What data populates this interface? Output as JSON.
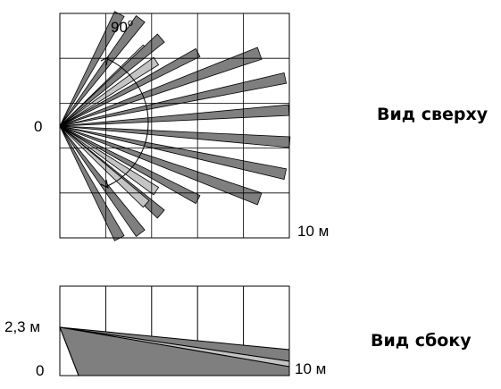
{
  "top_view": {
    "angle_label": "90",
    "angle_degree_mark": "o",
    "origin_label": "0",
    "range_label": "10 м",
    "caption": "Вид сверху"
  },
  "side_view": {
    "height_label": "2,3 м",
    "origin_label": "0",
    "range_label": "10 м",
    "caption": "Вид сбоку"
  },
  "colors": {
    "beam_dark": "#7f7f7f",
    "beam_light": "#c4c4c4",
    "grid": "#000000"
  }
}
